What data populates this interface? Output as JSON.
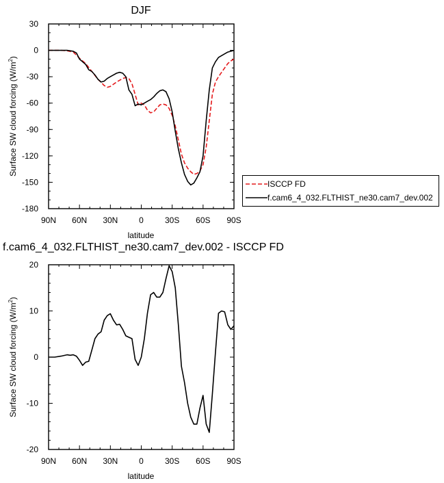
{
  "chart_data": [
    {
      "type": "line",
      "title": "DJF",
      "xlabel": "latitude",
      "ylabel": "Surface SW cloud forcing (W/m",
      "ylabel_sup": "2",
      "ylabel_end": ")",
      "xlim": [
        90,
        -90
      ],
      "ylim": [
        -180,
        30
      ],
      "x_ticks": [
        90,
        60,
        30,
        0,
        -30,
        -60,
        -90
      ],
      "x_tick_labels": [
        "90N",
        "60N",
        "30N",
        "0",
        "30S",
        "60S",
        "90S"
      ],
      "y_ticks": [
        30,
        0,
        -30,
        -60,
        -90,
        -120,
        -150,
        -180
      ],
      "y_tick_labels": [
        "30",
        "0",
        "-30",
        "-60",
        "-90",
        "-120",
        "-150",
        "-180"
      ],
      "legend": "right",
      "series": [
        {
          "name": "ISCCP FD",
          "color": "#e41a1c",
          "dash": "dashed",
          "x": [
            90,
            84,
            78,
            72,
            66,
            60,
            54,
            48,
            42,
            36,
            33,
            30,
            24,
            18,
            15,
            12,
            9,
            6,
            3,
            0,
            -3,
            -6,
            -9,
            -12,
            -15,
            -18,
            -21,
            -24,
            -27,
            -30,
            -33,
            -36,
            -39,
            -42,
            -45,
            -48,
            -51,
            -54,
            -57,
            -60,
            -63,
            -66,
            -69,
            -72,
            -75,
            -78,
            -81,
            -84,
            -87,
            -90
          ],
          "y": [
            0,
            0,
            0,
            -0.5,
            -2,
            -9,
            -15,
            -24,
            -33,
            -40,
            -42,
            -41,
            -36,
            -32,
            -31,
            -32,
            -38,
            -50,
            -62,
            -60,
            -62,
            -68,
            -71,
            -70,
            -66,
            -62,
            -61,
            -62,
            -66,
            -74,
            -86,
            -102,
            -118,
            -128,
            -134,
            -138,
            -141,
            -140,
            -137,
            -130,
            -110,
            -80,
            -50,
            -36,
            -30,
            -25,
            -20,
            -15,
            -12,
            -10
          ]
        },
        {
          "name": "f.cam6_4_032.FLTHIST_ne30.cam7_dev.002",
          "color": "#000000",
          "dash": "solid",
          "x": [
            90,
            84,
            78,
            72,
            66,
            63,
            60,
            57,
            54,
            51,
            48,
            45,
            42,
            39,
            36,
            33,
            30,
            27,
            24,
            21,
            18,
            15,
            12,
            9,
            6,
            3,
            0,
            -3,
            -6,
            -9,
            -12,
            -15,
            -18,
            -21,
            -24,
            -27,
            -30,
            -33,
            -36,
            -39,
            -42,
            -45,
            -48,
            -51,
            -54,
            -57,
            -60,
            -63,
            -66,
            -69,
            -72,
            -75,
            -78,
            -81,
            -84,
            -87,
            -90
          ],
          "y": [
            0,
            0,
            0,
            0,
            -1,
            -3,
            -10,
            -13,
            -16,
            -22,
            -24,
            -28,
            -33,
            -36,
            -35,
            -32,
            -30,
            -28,
            -26,
            -25,
            -26,
            -30,
            -45,
            -50,
            -63,
            -61,
            -62,
            -60,
            -58,
            -56,
            -53,
            -49,
            -46,
            -45,
            -47,
            -55,
            -70,
            -92,
            -112,
            -128,
            -141,
            -149,
            -153,
            -151,
            -145,
            -138,
            -120,
            -80,
            -45,
            -20,
            -13,
            -8,
            -6,
            -4,
            -2,
            -1,
            0
          ]
        }
      ]
    },
    {
      "type": "line",
      "title": "f.cam6_4_032.FLTHIST_ne30.cam7_dev.002 - ISCCP FD",
      "xlabel": "latitude",
      "ylabel": "Surface SW cloud forcing (W/m",
      "ylabel_sup": "2",
      "ylabel_end": ")",
      "xlim": [
        90,
        -90
      ],
      "ylim": [
        -20,
        20
      ],
      "x_ticks": [
        90,
        60,
        30,
        0,
        -30,
        -60,
        -90
      ],
      "x_tick_labels": [
        "90N",
        "60N",
        "30N",
        "0",
        "30S",
        "60S",
        "90S"
      ],
      "y_ticks": [
        20,
        10,
        0,
        -10,
        -20
      ],
      "y_tick_labels": [
        "20",
        "10",
        "0",
        "-10",
        "-20"
      ],
      "series": [
        {
          "color": "#000000",
          "dash": "solid",
          "x": [
            90,
            84,
            78,
            72,
            69,
            66,
            63,
            60,
            57,
            54,
            51,
            48,
            45,
            42,
            39,
            36,
            33,
            30,
            27,
            24,
            21,
            18,
            15,
            12,
            9,
            6,
            3,
            0,
            -3,
            -6,
            -9,
            -12,
            -15,
            -18,
            -21,
            -24,
            -27,
            -30,
            -33,
            -36,
            -39,
            -42,
            -45,
            -48,
            -51,
            -54,
            -57,
            -60,
            -63,
            -66,
            -69,
            -72,
            -75,
            -78,
            -81,
            -84,
            -87,
            -90
          ],
          "y": [
            0,
            0,
            0.2,
            0.5,
            0.4,
            0.5,
            0.2,
            -0.7,
            -1.8,
            -1.1,
            -0.9,
            1.5,
            4,
            5,
            5.5,
            8,
            9,
            9.4,
            8,
            7,
            7.1,
            6,
            4.6,
            4.3,
            4,
            -0.5,
            -1.8,
            0,
            4,
            9.5,
            13.5,
            14,
            13,
            13,
            14,
            17,
            19.8,
            18.5,
            15,
            7,
            -2,
            -5.5,
            -10,
            -13,
            -14.5,
            -14.5,
            -11,
            -8.3,
            -14.5,
            -16.3,
            -8,
            1,
            9.5,
            10,
            9.8,
            7,
            6,
            6.8
          ]
        }
      ]
    }
  ],
  "legend": {
    "entries": [
      "ISCCP FD",
      "f.cam6_4_032.FLTHIST_ne30.cam7_dev.002"
    ]
  }
}
